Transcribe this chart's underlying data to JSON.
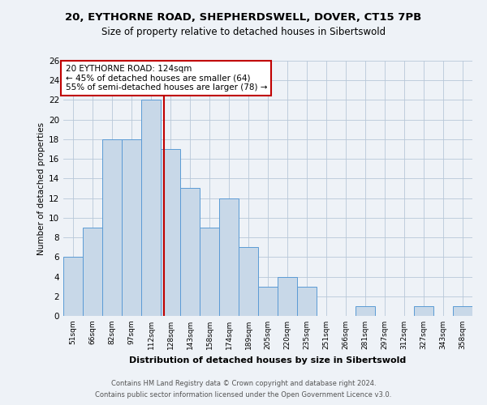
{
  "title_line1": "20, EYTHORNE ROAD, SHEPHERDSWELL, DOVER, CT15 7PB",
  "title_line2": "Size of property relative to detached houses in Sibertswold",
  "xlabel": "Distribution of detached houses by size in Sibertswold",
  "ylabel": "Number of detached properties",
  "bar_labels": [
    "51sqm",
    "66sqm",
    "82sqm",
    "97sqm",
    "112sqm",
    "128sqm",
    "143sqm",
    "158sqm",
    "174sqm",
    "189sqm",
    "205sqm",
    "220sqm",
    "235sqm",
    "251sqm",
    "266sqm",
    "281sqm",
    "297sqm",
    "312sqm",
    "327sqm",
    "343sqm",
    "358sqm"
  ],
  "bar_heights": [
    6,
    9,
    18,
    18,
    22,
    17,
    13,
    9,
    12,
    7,
    3,
    4,
    3,
    0,
    0,
    1,
    0,
    0,
    1,
    0,
    1
  ],
  "bar_color": "#c8d8e8",
  "bar_edge_color": "#5b9bd5",
  "bar_width": 1.0,
  "vline_x": 4.67,
  "vline_color": "#c00000",
  "annotation_text": "20 EYTHORNE ROAD: 124sqm\n← 45% of detached houses are smaller (64)\n55% of semi-detached houses are larger (78) →",
  "annotation_box_color": "#ffffff",
  "annotation_box_edge_color": "#c00000",
  "ylim": [
    0,
    26
  ],
  "yticks": [
    0,
    2,
    4,
    6,
    8,
    10,
    12,
    14,
    16,
    18,
    20,
    22,
    24,
    26
  ],
  "background_color": "#eef2f7",
  "footer_line1": "Contains HM Land Registry data © Crown copyright and database right 2024.",
  "footer_line2": "Contains public sector information licensed under the Open Government Licence v3.0."
}
